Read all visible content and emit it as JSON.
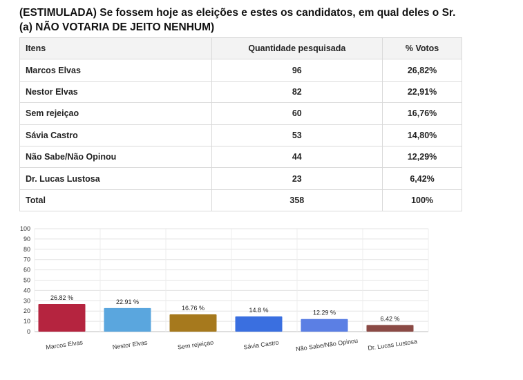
{
  "header": {
    "title_line1": "(ESTIMULADA) Se fossem hoje as eleições e estes os candidatos, em qual deles o Sr.",
    "title_line2": "(a) NÃO VOTARIA DE JEITO NENHUM)"
  },
  "table": {
    "headers": [
      "Itens",
      "Quantidade pesquisada",
      "% Votos"
    ],
    "rows": [
      [
        "Marcos Elvas",
        "96",
        "26,82%"
      ],
      [
        "Nestor Elvas",
        "82",
        "22,91%"
      ],
      [
        "Sem rejeiçao",
        "60",
        "16,76%"
      ],
      [
        "Sávia Castro",
        "53",
        "14,80%"
      ],
      [
        "Não Sabe/Não Opinou",
        "44",
        "12,29%"
      ],
      [
        "Dr. Lucas Lustosa",
        "23",
        "6,42%"
      ],
      [
        "Total",
        "358",
        "100%"
      ]
    ]
  },
  "chart_data": {
    "type": "bar",
    "categories": [
      "Marcos Elvas",
      "Nestor Elvas",
      "Sem rejeiçao",
      "Sávia Castro",
      "Não Sabe/Não Opinou",
      "Dr. Lucas Lustosa"
    ],
    "values": [
      26.82,
      22.91,
      16.76,
      14.8,
      12.29,
      6.42
    ],
    "data_labels": [
      "26.82 %",
      "22.91 %",
      "16.76 %",
      "14.8 %",
      "12.29 %",
      "6.42 %"
    ],
    "colors": [
      "#b5243f",
      "#5aa6de",
      "#a6791d",
      "#3a6fe0",
      "#5b7fe4",
      "#8b4a45"
    ],
    "yticks": [
      0,
      10,
      20,
      30,
      40,
      50,
      60,
      70,
      80,
      90,
      100
    ],
    "ylim": [
      0,
      100
    ],
    "grid": true,
    "title": "",
    "xlabel": "",
    "ylabel": ""
  }
}
